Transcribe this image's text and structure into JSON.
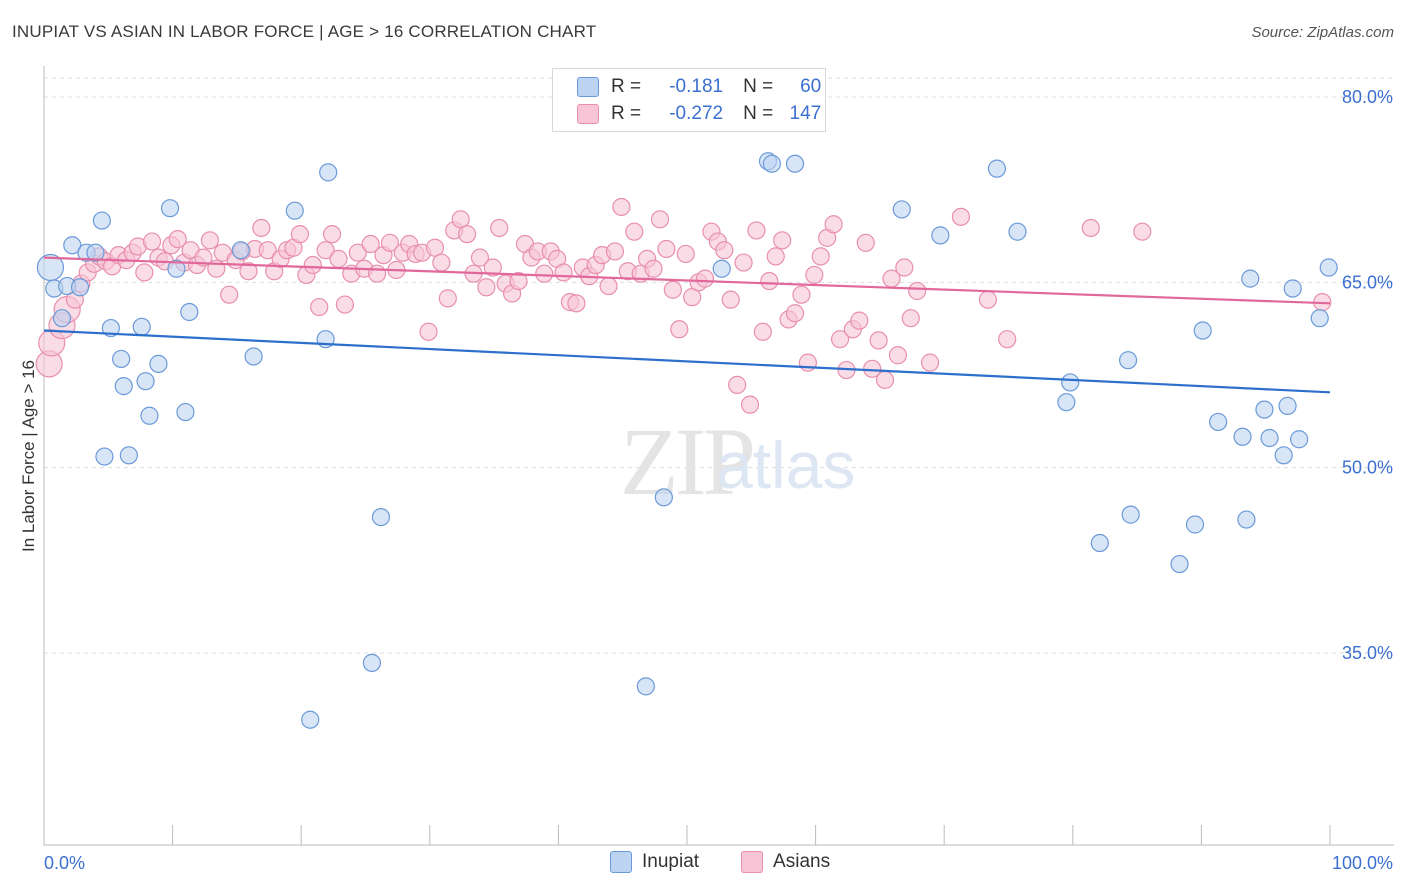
{
  "header": {
    "title": "INUPIAT VS ASIAN IN LABOR FORCE | AGE > 16 CORRELATION CHART",
    "source": "Source: ZipAtlas.com"
  },
  "legend": {
    "rows": [
      {
        "r_label": "R =",
        "r_value": "-0.181",
        "n_label": "N =",
        "n_value": "60"
      },
      {
        "r_label": "R =",
        "r_value": "-0.272",
        "n_label": "N =",
        "n_value": "147"
      }
    ],
    "bottom": [
      {
        "label": "Inupiat"
      },
      {
        "label": "Asians"
      }
    ]
  },
  "watermark": {
    "zip": "ZIP",
    "atlas": "atlas"
  },
  "colors": {
    "inupiat_fill": "#bcd3f2",
    "inupiat_stroke": "#6b9ad8",
    "inupiat_line": "#2d6fcc",
    "asians_fill": "#f7c5d6",
    "asians_stroke": "#e88fae",
    "asians_line": "#e0689a",
    "tick_label": "#3b6fd0",
    "grid": "#dddddd"
  },
  "chart_data": {
    "type": "scatter",
    "title": "INUPIAT VS ASIAN IN LABOR FORCE | AGE > 16 CORRELATION CHART",
    "xlabel": "",
    "ylabel": "In Labor Force | Age > 16",
    "xlim": [
      0,
      100
    ],
    "ylim": [
      20,
      82
    ],
    "x_tick_labels": [
      "0.0%",
      "100.0%"
    ],
    "y_ticks": [
      35,
      50,
      65,
      80
    ],
    "y_tick_labels": [
      "35.0%",
      "50.0%",
      "65.0%",
      "80.0%"
    ],
    "grid": true,
    "series": [
      {
        "name": "Inupiat",
        "trend": {
          "x": [
            0,
            100
          ],
          "y": [
            61.1,
            56.1
          ]
        },
        "points": [
          {
            "x": 0.5,
            "y": 66.2,
            "r": "large"
          },
          {
            "x": 0.8,
            "y": 64.5
          },
          {
            "x": 1.4,
            "y": 62.1
          },
          {
            "x": 1.8,
            "y": 64.7
          },
          {
            "x": 2.2,
            "y": 68.0
          },
          {
            "x": 2.8,
            "y": 64.6
          },
          {
            "x": 3.3,
            "y": 67.4
          },
          {
            "x": 4.0,
            "y": 67.4
          },
          {
            "x": 4.5,
            "y": 70.0
          },
          {
            "x": 4.7,
            "y": 50.9
          },
          {
            "x": 5.2,
            "y": 61.3
          },
          {
            "x": 6.0,
            "y": 58.8
          },
          {
            "x": 6.2,
            "y": 56.6
          },
          {
            "x": 6.6,
            "y": 51.0
          },
          {
            "x": 7.6,
            "y": 61.4
          },
          {
            "x": 7.9,
            "y": 57.0
          },
          {
            "x": 8.2,
            "y": 54.2
          },
          {
            "x": 8.9,
            "y": 58.4
          },
          {
            "x": 9.8,
            "y": 71.0
          },
          {
            "x": 10.3,
            "y": 66.1
          },
          {
            "x": 11.0,
            "y": 54.5
          },
          {
            "x": 11.3,
            "y": 62.6
          },
          {
            "x": 15.3,
            "y": 67.6
          },
          {
            "x": 16.3,
            "y": 59.0
          },
          {
            "x": 19.5,
            "y": 70.8
          },
          {
            "x": 20.7,
            "y": 29.6
          },
          {
            "x": 21.9,
            "y": 60.4
          },
          {
            "x": 22.1,
            "y": 73.9
          },
          {
            "x": 25.5,
            "y": 34.2
          },
          {
            "x": 26.2,
            "y": 46.0
          },
          {
            "x": 46.8,
            "y": 32.3
          },
          {
            "x": 48.2,
            "y": 47.6
          },
          {
            "x": 52.7,
            "y": 66.1
          },
          {
            "x": 56.3,
            "y": 74.8
          },
          {
            "x": 56.6,
            "y": 74.6
          },
          {
            "x": 58.4,
            "y": 74.6
          },
          {
            "x": 66.7,
            "y": 70.9
          },
          {
            "x": 69.7,
            "y": 68.8
          },
          {
            "x": 74.1,
            "y": 74.2
          },
          {
            "x": 75.7,
            "y": 69.1
          },
          {
            "x": 79.5,
            "y": 55.3
          },
          {
            "x": 79.8,
            "y": 56.9
          },
          {
            "x": 82.1,
            "y": 43.9
          },
          {
            "x": 84.3,
            "y": 58.7
          },
          {
            "x": 84.5,
            "y": 46.2
          },
          {
            "x": 88.3,
            "y": 42.2
          },
          {
            "x": 89.5,
            "y": 45.4
          },
          {
            "x": 90.1,
            "y": 61.1
          },
          {
            "x": 91.3,
            "y": 53.7
          },
          {
            "x": 93.2,
            "y": 52.5
          },
          {
            "x": 93.5,
            "y": 45.8
          },
          {
            "x": 93.8,
            "y": 65.3
          },
          {
            "x": 94.9,
            "y": 54.7
          },
          {
            "x": 95.3,
            "y": 52.4
          },
          {
            "x": 96.4,
            "y": 51.0
          },
          {
            "x": 96.7,
            "y": 55.0
          },
          {
            "x": 97.1,
            "y": 64.5
          },
          {
            "x": 97.6,
            "y": 52.3
          },
          {
            "x": 99.2,
            "y": 62.1
          },
          {
            "x": 99.9,
            "y": 66.2
          }
        ]
      },
      {
        "name": "Asians",
        "trend": {
          "x": [
            0,
            100
          ],
          "y": [
            67.0,
            63.3
          ]
        },
        "points": [
          {
            "x": 0.4,
            "y": 58.4,
            "r": "large"
          },
          {
            "x": 0.6,
            "y": 60.1,
            "r": "large"
          },
          {
            "x": 1.4,
            "y": 61.5,
            "r": "large"
          },
          {
            "x": 1.8,
            "y": 62.8,
            "r": "large"
          },
          {
            "x": 2.4,
            "y": 63.6
          },
          {
            "x": 2.9,
            "y": 64.9
          },
          {
            "x": 3.4,
            "y": 65.8
          },
          {
            "x": 3.9,
            "y": 66.5
          },
          {
            "x": 4.3,
            "y": 67.1
          },
          {
            "x": 4.8,
            "y": 66.7
          },
          {
            "x": 5.3,
            "y": 66.3
          },
          {
            "x": 5.8,
            "y": 67.2
          },
          {
            "x": 6.4,
            "y": 66.8
          },
          {
            "x": 6.9,
            "y": 67.4
          },
          {
            "x": 7.3,
            "y": 67.9
          },
          {
            "x": 7.8,
            "y": 65.8
          },
          {
            "x": 8.4,
            "y": 68.3
          },
          {
            "x": 8.9,
            "y": 67.0
          },
          {
            "x": 9.4,
            "y": 66.7
          },
          {
            "x": 9.9,
            "y": 68.0
          },
          {
            "x": 10.4,
            "y": 68.5
          },
          {
            "x": 10.9,
            "y": 66.6
          },
          {
            "x": 11.4,
            "y": 67.6
          },
          {
            "x": 11.9,
            "y": 66.4
          },
          {
            "x": 12.4,
            "y": 67.0
          },
          {
            "x": 12.9,
            "y": 68.4
          },
          {
            "x": 13.4,
            "y": 66.1
          },
          {
            "x": 13.9,
            "y": 67.4
          },
          {
            "x": 14.4,
            "y": 64.0
          },
          {
            "x": 14.9,
            "y": 66.8
          },
          {
            "x": 15.4,
            "y": 67.5
          },
          {
            "x": 15.9,
            "y": 65.9
          },
          {
            "x": 16.4,
            "y": 67.7
          },
          {
            "x": 16.9,
            "y": 69.4
          },
          {
            "x": 17.4,
            "y": 67.6
          },
          {
            "x": 17.9,
            "y": 65.9
          },
          {
            "x": 18.4,
            "y": 66.9
          },
          {
            "x": 18.9,
            "y": 67.6
          },
          {
            "x": 19.4,
            "y": 67.8
          },
          {
            "x": 19.9,
            "y": 68.9
          },
          {
            "x": 20.4,
            "y": 65.6
          },
          {
            "x": 20.9,
            "y": 66.4
          },
          {
            "x": 21.4,
            "y": 63.0
          },
          {
            "x": 21.9,
            "y": 67.6
          },
          {
            "x": 22.4,
            "y": 68.9
          },
          {
            "x": 22.9,
            "y": 66.9
          },
          {
            "x": 23.4,
            "y": 63.2
          },
          {
            "x": 23.9,
            "y": 65.7
          },
          {
            "x": 24.4,
            "y": 67.4
          },
          {
            "x": 24.9,
            "y": 66.1
          },
          {
            "x": 25.4,
            "y": 68.1
          },
          {
            "x": 25.9,
            "y": 65.7
          },
          {
            "x": 26.4,
            "y": 67.2
          },
          {
            "x": 26.9,
            "y": 68.2
          },
          {
            "x": 27.4,
            "y": 66.0
          },
          {
            "x": 27.9,
            "y": 67.4
          },
          {
            "x": 28.4,
            "y": 68.1
          },
          {
            "x": 28.9,
            "y": 67.3
          },
          {
            "x": 29.4,
            "y": 67.4
          },
          {
            "x": 29.9,
            "y": 61.0
          },
          {
            "x": 30.4,
            "y": 67.8
          },
          {
            "x": 30.9,
            "y": 66.6
          },
          {
            "x": 31.4,
            "y": 63.7
          },
          {
            "x": 31.9,
            "y": 69.2
          },
          {
            "x": 32.4,
            "y": 70.1
          },
          {
            "x": 32.9,
            "y": 68.9
          },
          {
            "x": 33.4,
            "y": 65.7
          },
          {
            "x": 33.9,
            "y": 67.0
          },
          {
            "x": 34.4,
            "y": 64.6
          },
          {
            "x": 34.9,
            "y": 66.2
          },
          {
            "x": 35.4,
            "y": 69.4
          },
          {
            "x": 35.9,
            "y": 64.9
          },
          {
            "x": 36.4,
            "y": 64.1
          },
          {
            "x": 36.9,
            "y": 65.1
          },
          {
            "x": 37.4,
            "y": 68.1
          },
          {
            "x": 37.9,
            "y": 67.0
          },
          {
            "x": 38.4,
            "y": 67.5
          },
          {
            "x": 38.9,
            "y": 65.7
          },
          {
            "x": 39.4,
            "y": 67.5
          },
          {
            "x": 39.9,
            "y": 66.9
          },
          {
            "x": 40.4,
            "y": 65.8
          },
          {
            "x": 40.9,
            "y": 63.4
          },
          {
            "x": 41.4,
            "y": 63.3
          },
          {
            "x": 41.9,
            "y": 66.2
          },
          {
            "x": 42.4,
            "y": 65.5
          },
          {
            "x": 42.9,
            "y": 66.4
          },
          {
            "x": 43.4,
            "y": 67.2
          },
          {
            "x": 43.9,
            "y": 64.7
          },
          {
            "x": 44.4,
            "y": 67.5
          },
          {
            "x": 44.9,
            "y": 71.1
          },
          {
            "x": 45.4,
            "y": 65.9
          },
          {
            "x": 45.9,
            "y": 69.1
          },
          {
            "x": 46.4,
            "y": 65.7
          },
          {
            "x": 46.9,
            "y": 66.9
          },
          {
            "x": 47.4,
            "y": 66.1
          },
          {
            "x": 47.9,
            "y": 70.1
          },
          {
            "x": 48.4,
            "y": 67.7
          },
          {
            "x": 48.9,
            "y": 64.4
          },
          {
            "x": 49.4,
            "y": 61.2
          },
          {
            "x": 49.9,
            "y": 67.3
          },
          {
            "x": 50.4,
            "y": 63.8
          },
          {
            "x": 50.9,
            "y": 65.0
          },
          {
            "x": 51.4,
            "y": 65.3
          },
          {
            "x": 51.9,
            "y": 69.1
          },
          {
            "x": 52.4,
            "y": 68.3
          },
          {
            "x": 52.9,
            "y": 67.6
          },
          {
            "x": 53.4,
            "y": 63.6
          },
          {
            "x": 53.9,
            "y": 56.7
          },
          {
            "x": 54.4,
            "y": 66.6
          },
          {
            "x": 54.9,
            "y": 55.1
          },
          {
            "x": 55.4,
            "y": 69.2
          },
          {
            "x": 55.9,
            "y": 61.0
          },
          {
            "x": 56.4,
            "y": 65.1
          },
          {
            "x": 56.9,
            "y": 67.1
          },
          {
            "x": 57.4,
            "y": 68.4
          },
          {
            "x": 57.9,
            "y": 62.0
          },
          {
            "x": 58.4,
            "y": 62.5
          },
          {
            "x": 58.9,
            "y": 64.0
          },
          {
            "x": 59.4,
            "y": 58.5
          },
          {
            "x": 59.9,
            "y": 65.6
          },
          {
            "x": 60.4,
            "y": 67.1
          },
          {
            "x": 60.9,
            "y": 68.6
          },
          {
            "x": 61.4,
            "y": 69.7
          },
          {
            "x": 61.9,
            "y": 60.4
          },
          {
            "x": 62.4,
            "y": 57.9
          },
          {
            "x": 62.9,
            "y": 61.2
          },
          {
            "x": 63.4,
            "y": 61.9
          },
          {
            "x": 63.9,
            "y": 68.2
          },
          {
            "x": 64.4,
            "y": 58.0
          },
          {
            "x": 64.9,
            "y": 60.3
          },
          {
            "x": 65.4,
            "y": 57.1
          },
          {
            "x": 65.9,
            "y": 65.3
          },
          {
            "x": 66.4,
            "y": 59.1
          },
          {
            "x": 66.9,
            "y": 66.2
          },
          {
            "x": 67.4,
            "y": 62.1
          },
          {
            "x": 67.9,
            "y": 64.3
          },
          {
            "x": 68.9,
            "y": 58.5
          },
          {
            "x": 71.3,
            "y": 70.3
          },
          {
            "x": 73.4,
            "y": 63.6
          },
          {
            "x": 74.9,
            "y": 60.4
          },
          {
            "x": 81.4,
            "y": 69.4
          },
          {
            "x": 85.4,
            "y": 69.1
          },
          {
            "x": 99.4,
            "y": 63.4
          }
        ]
      }
    ]
  }
}
